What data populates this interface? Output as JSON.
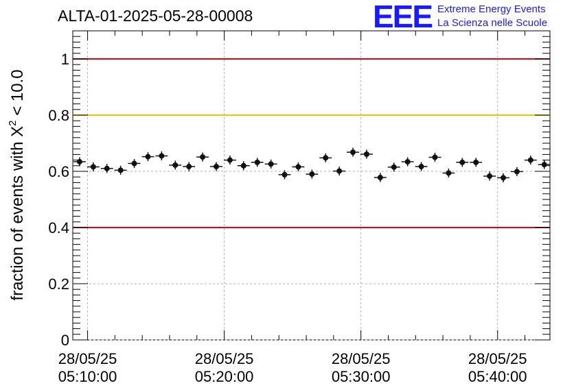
{
  "header": {
    "title": "ALTA-01-2025-05-28-00008",
    "logo_mark": "EEE",
    "logo_line1": "Extreme Energy Events",
    "logo_line2": "La Scienza nelle Scuole"
  },
  "colors": {
    "upper_limit": "#e8000b",
    "warning": "#ffc000",
    "lower_limit": "#e8000b",
    "marker": "#111111",
    "logo": "#1a1aff"
  },
  "chart_data": {
    "type": "scatter",
    "title": "ALTA-01-2025-05-28-00008",
    "xlabel": "",
    "ylabel": "fraction of events with χ² < 10.0",
    "ylabel_parts": {
      "prefix": "fraction of events with X",
      "sup": "2",
      "suffix": " < 10.0"
    },
    "x_axis": "time",
    "xlim": [
      "28/05/25 05:08:55",
      "28/05/25 05:43:50"
    ],
    "ylim": [
      0,
      1.1
    ],
    "grid": true,
    "x_ticks": [
      {
        "date": "28/05/25",
        "time": "05:10:00"
      },
      {
        "date": "28/05/25",
        "time": "05:20:00"
      },
      {
        "date": "28/05/25",
        "time": "05:30:00"
      },
      {
        "date": "28/05/25",
        "time": "05:40:00"
      }
    ],
    "y_ticks": [
      "0",
      "0.2",
      "0.4",
      "0.6",
      "0.8",
      "1"
    ],
    "y_tick_values": [
      0,
      0.2,
      0.4,
      0.6,
      0.8,
      1
    ],
    "reference_lines": [
      {
        "y": 1.0,
        "color": "#e8000b"
      },
      {
        "y": 0.8,
        "color": "#ffc000"
      },
      {
        "y": 0.4,
        "color": "#e8000b"
      }
    ],
    "series": [
      {
        "bin_width_s": 60,
        "x": [
          "05:09:25",
          "05:10:25",
          "05:11:25",
          "05:12:25",
          "05:13:25",
          "05:14:25",
          "05:15:25",
          "05:16:25",
          "05:17:25",
          "05:18:25",
          "05:19:25",
          "05:20:25",
          "05:21:25",
          "05:22:25",
          "05:23:25",
          "05:24:25",
          "05:25:25",
          "05:26:25",
          "05:27:25",
          "05:28:25",
          "05:29:25",
          "05:30:25",
          "05:31:25",
          "05:32:25",
          "05:33:25",
          "05:34:25",
          "05:35:25",
          "05:36:25",
          "05:37:25",
          "05:38:25",
          "05:39:25",
          "05:40:25",
          "05:41:25",
          "05:42:25",
          "05:43:25"
        ],
        "y": [
          0.634,
          0.616,
          0.61,
          0.604,
          0.628,
          0.652,
          0.655,
          0.622,
          0.617,
          0.651,
          0.617,
          0.64,
          0.62,
          0.632,
          0.626,
          0.588,
          0.616,
          0.59,
          0.648,
          0.601,
          0.668,
          0.661,
          0.578,
          0.615,
          0.634,
          0.617,
          0.65,
          0.594,
          0.632,
          0.632,
          0.583,
          0.577,
          0.599,
          0.64,
          0.624
        ],
        "yerr": 0.016
      }
    ]
  }
}
